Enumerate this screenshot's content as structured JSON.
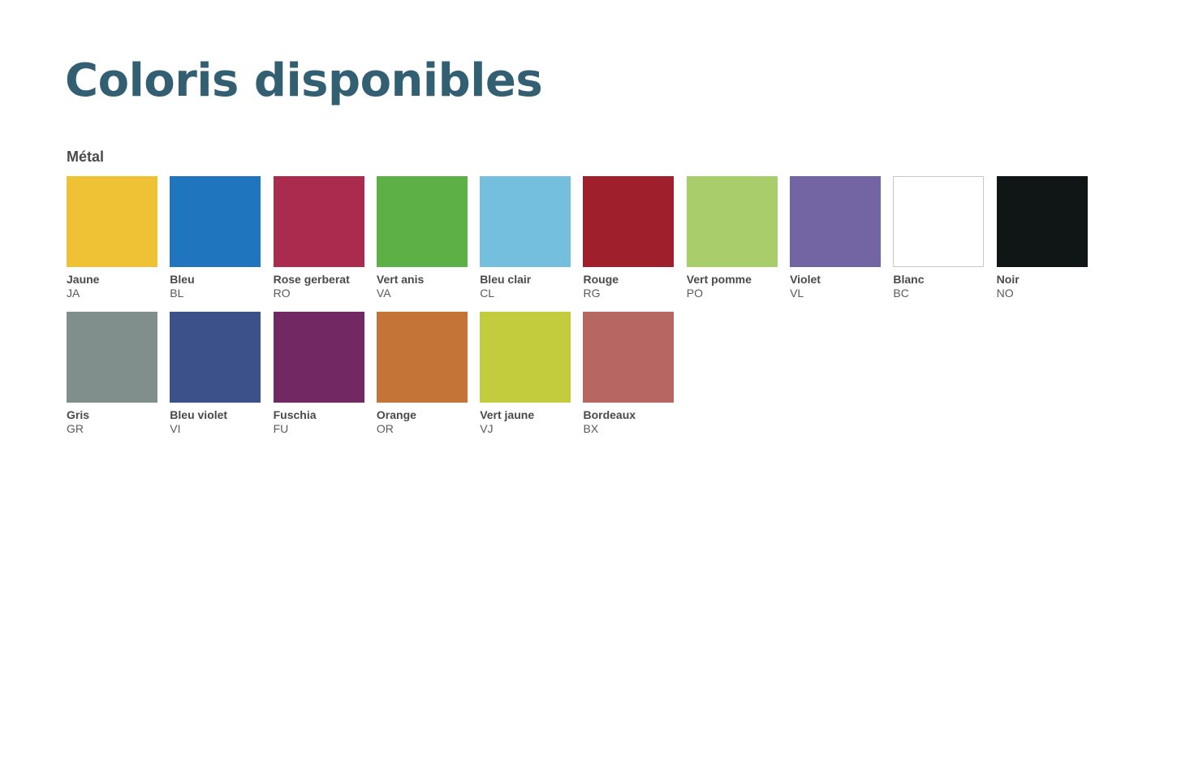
{
  "title": "Coloris disponibles",
  "section": {
    "label": "Métal",
    "colors": [
      {
        "name": "Jaune",
        "code": "JA",
        "hex": "#efc235",
        "outlined": false
      },
      {
        "name": "Bleu",
        "code": "BL",
        "hex": "#1f76be",
        "outlined": false
      },
      {
        "name": "Rose gerberat",
        "code": "RO",
        "hex": "#aa2b4e",
        "outlined": false
      },
      {
        "name": "Vert anis",
        "code": "VA",
        "hex": "#5db045",
        "outlined": false
      },
      {
        "name": "Bleu clair",
        "code": "CL",
        "hex": "#73bfdd",
        "outlined": false
      },
      {
        "name": "Rouge",
        "code": "RG",
        "hex": "#a01f2d",
        "outlined": false
      },
      {
        "name": "Vert pomme",
        "code": "PO",
        "hex": "#a9cd6b",
        "outlined": false
      },
      {
        "name": "Violet",
        "code": "VL",
        "hex": "#7364a3",
        "outlined": false
      },
      {
        "name": "Blanc",
        "code": "BC",
        "hex": "#ffffff",
        "outlined": true
      },
      {
        "name": "Noir",
        "code": "NO",
        "hex": "#101616",
        "outlined": false
      },
      {
        "name": "Gris",
        "code": "GR",
        "hex": "#808e8c",
        "outlined": false
      },
      {
        "name": "Bleu violet",
        "code": "VI",
        "hex": "#3c5189",
        "outlined": false
      },
      {
        "name": "Fuschia",
        "code": "FU",
        "hex": "#722863",
        "outlined": false
      },
      {
        "name": "Orange",
        "code": "OR",
        "hex": "#c47436",
        "outlined": false
      },
      {
        "name": "Vert jaune",
        "code": "VJ",
        "hex": "#c3cc3c",
        "outlined": false
      },
      {
        "name": "Bordeaux",
        "code": "BX",
        "hex": "#b76761",
        "outlined": false
      }
    ]
  }
}
